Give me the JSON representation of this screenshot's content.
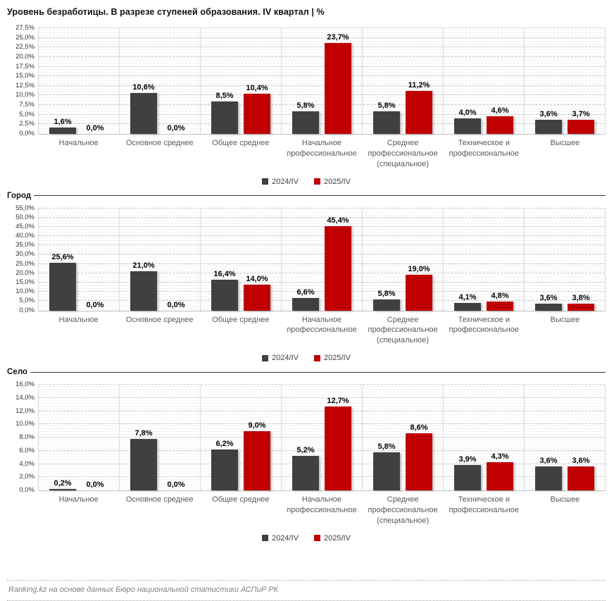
{
  "title": "Уровень безработицы. В разрезе ступеней образования. IV квартал | %",
  "footer": "Ranking.kz на основе данных Бюро национальной статистики АСПиР РК",
  "colors": {
    "series_2024": "#404040",
    "series_2025": "#C00000",
    "gridline": "#c6c6c6",
    "axis_label": "#595959"
  },
  "legend": [
    "2024/IV",
    "2025/IV"
  ],
  "chart_data": [
    {
      "type": "bar",
      "section": "",
      "title": "",
      "xlabel": "",
      "ylabel": "",
      "grid": true,
      "legend_position": "bottom",
      "ylim": [
        0,
        27.5
      ],
      "ystep": 2.5,
      "categories": [
        "Начальное",
        "Основное среднее",
        "Общее среднее",
        "Начальное\nпрофессиональное",
        "Среднее\nпрофессиональное\n(специальное)",
        "Техническое и\nпрофессиональное",
        "Высшее"
      ],
      "series": [
        {
          "name": "2024/IV",
          "values": [
            1.6,
            10.6,
            8.5,
            5.8,
            5.8,
            4.0,
            3.6
          ]
        },
        {
          "name": "2025/IV",
          "values": [
            0.0,
            0.0,
            10.4,
            23.7,
            11.2,
            4.6,
            3.7
          ]
        }
      ]
    },
    {
      "type": "bar",
      "section": "Город",
      "title": "",
      "xlabel": "",
      "ylabel": "",
      "grid": true,
      "legend_position": "bottom",
      "ylim": [
        0,
        55
      ],
      "ystep": 5,
      "categories": [
        "Начальное",
        "Основное среднее",
        "Общее среднее",
        "Начальное\nпрофессиональное",
        "Среднее\nпрофессиональное\n(специальное)",
        "Техническое и\nпрофессиональное",
        "Высшее"
      ],
      "series": [
        {
          "name": "2024/IV",
          "values": [
            25.6,
            21.0,
            16.4,
            6.6,
            5.8,
            4.1,
            3.6
          ]
        },
        {
          "name": "2025/IV",
          "values": [
            0.0,
            0.0,
            14.0,
            45.4,
            19.0,
            4.8,
            3.8
          ]
        }
      ]
    },
    {
      "type": "bar",
      "section": "Село",
      "title": "",
      "xlabel": "",
      "ylabel": "",
      "grid": true,
      "legend_position": "bottom",
      "ylim": [
        0,
        16
      ],
      "ystep": 2,
      "categories": [
        "Начальное",
        "Основное среднее",
        "Общее среднее",
        "Начальное\nпрофессиональное",
        "Среднее\nпрофессиональное\n(специальное)",
        "Техническое и\nпрофессиональное",
        "Высшее"
      ],
      "series": [
        {
          "name": "2024/IV",
          "values": [
            0.2,
            7.8,
            6.2,
            5.2,
            5.8,
            3.9,
            3.6
          ]
        },
        {
          "name": "2025/IV",
          "values": [
            0.0,
            0.0,
            9.0,
            12.7,
            8.6,
            4.3,
            3.6
          ]
        }
      ]
    }
  ]
}
